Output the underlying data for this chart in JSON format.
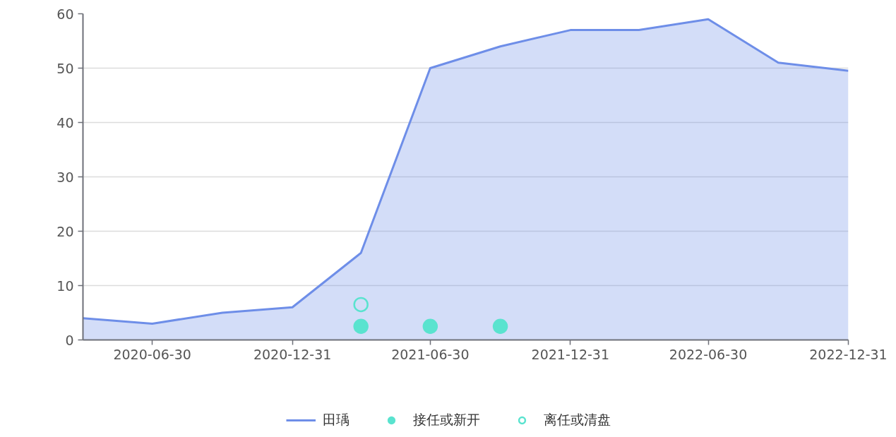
{
  "chart_data": {
    "type": "area",
    "x": [
      "2020-03-31",
      "2020-06-30",
      "2020-09-30",
      "2020-12-31",
      "2021-03-31",
      "2021-06-30",
      "2021-09-30",
      "2021-12-31",
      "2022-03-31",
      "2022-06-30",
      "2022-09-30",
      "2022-12-31"
    ],
    "series": [
      {
        "name": "田瑀",
        "color": "#6e8ee8",
        "values": [
          4,
          3,
          5,
          6,
          16,
          50,
          54,
          57,
          57,
          59,
          51,
          49.5
        ]
      },
      {
        "name": "接任或新开",
        "type": "scatter",
        "marker": "circle",
        "color": "#5ae3cf",
        "x": [
          "2021-03-31",
          "2021-06-30",
          "2021-09-30"
        ],
        "values": [
          2.5,
          2.5,
          2.5
        ]
      },
      {
        "name": "离任或清盘",
        "type": "scatter",
        "marker": "circle_open",
        "color": "#5ae3cf",
        "x": [
          "2021-03-31"
        ],
        "values": [
          6.5
        ]
      }
    ],
    "xlim": [
      "2020-03-31",
      "2022-12-31"
    ],
    "xticks": [
      "2020-06-30",
      "2020-12-31",
      "2021-06-30",
      "2021-12-31",
      "2022-06-30",
      "2022-12-31"
    ],
    "ylim": [
      0,
      60
    ],
    "yticks": [
      0,
      10,
      20,
      30,
      40,
      50,
      60
    ],
    "grid": "y",
    "legend": "bottom"
  }
}
